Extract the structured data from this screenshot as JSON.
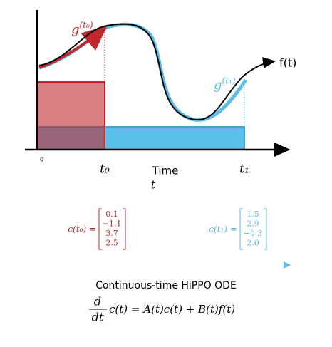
{
  "plot": {
    "g_t0": {
      "base": "g",
      "sup": "(t₀)"
    },
    "f": "f(t)",
    "g_t1": {
      "base": "g",
      "sup": "(t₁)"
    },
    "origin": "0",
    "t0": "t₀",
    "t1": "t₁",
    "x_label": "Time",
    "x_symbol": "t"
  },
  "coefficients": [
    {
      "label": "c(t₀) =",
      "values": [
        "0.1",
        "−1.1",
        "3.7",
        "2.5"
      ]
    },
    {
      "label": "c(t₁) =",
      "values": [
        "1.5",
        "2.9",
        "−0.3",
        "2.0"
      ]
    }
  ],
  "caption": "Continuous-time HiPPO ODE",
  "equation": {
    "numerator": "d",
    "denominator": "dt",
    "rest": "c(t) = A(t)c(t) + B(t)f(t)"
  }
}
